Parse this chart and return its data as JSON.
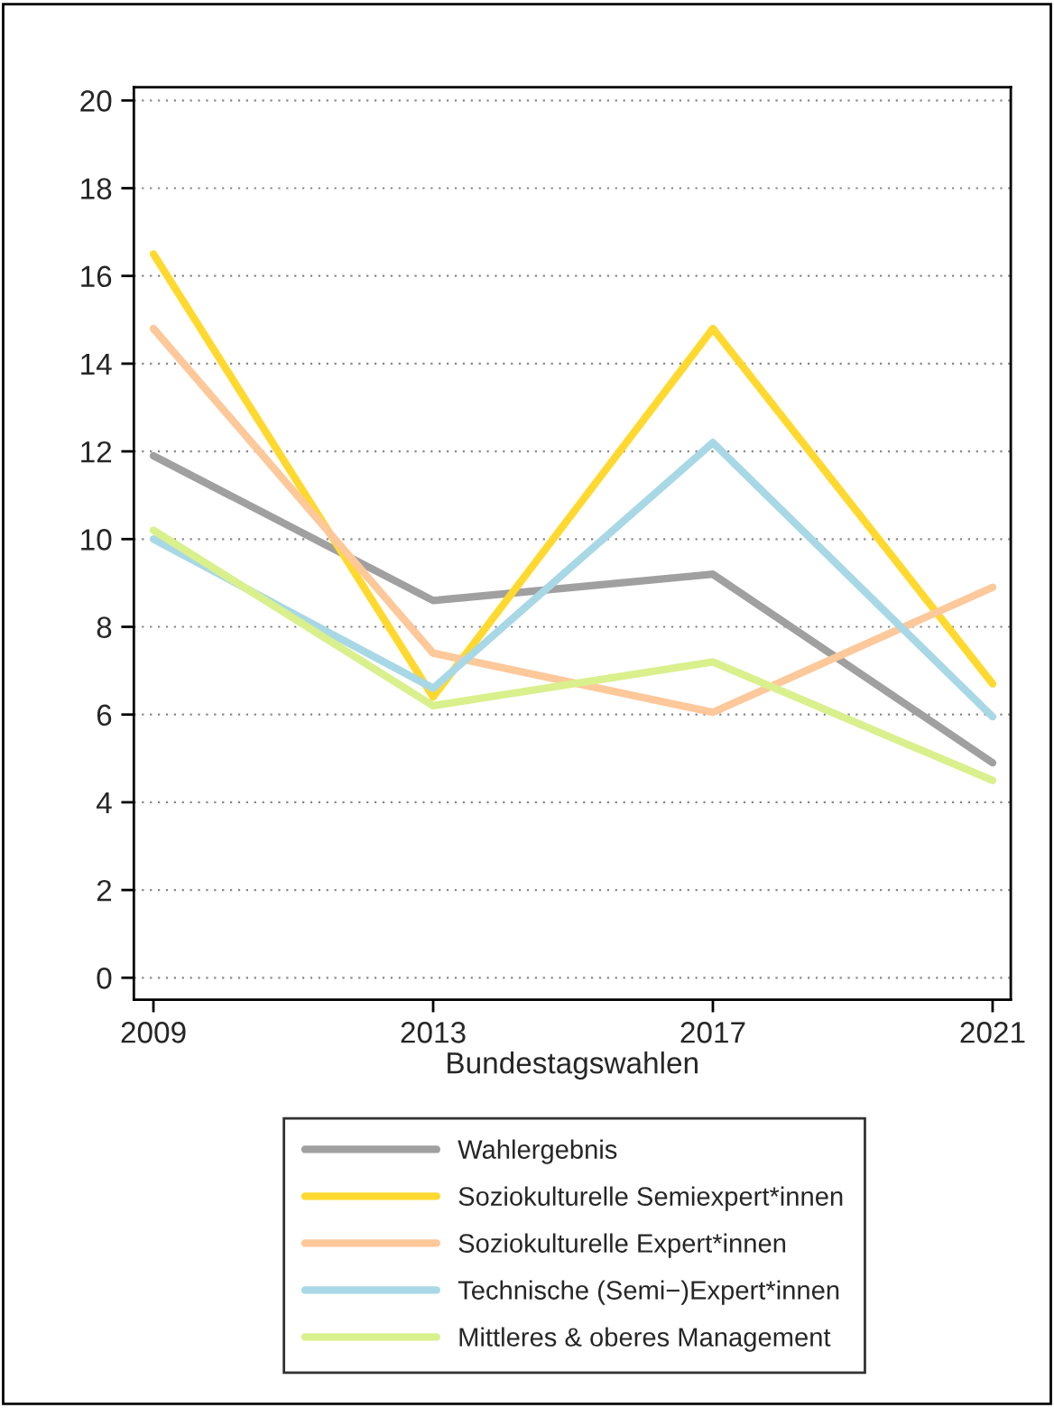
{
  "chart_data": {
    "type": "line",
    "xlabel": "Bundestagswahlen",
    "x": [
      2009,
      2013,
      2017,
      2021
    ],
    "xlim": [
      2008.72,
      2021.26
    ],
    "xticks": [
      2009,
      2013,
      2017,
      2021
    ],
    "ylim": [
      -0.5,
      20.3
    ],
    "yticks": [
      0,
      2,
      4,
      6,
      8,
      10,
      12,
      14,
      16,
      18,
      20
    ],
    "grid": "y",
    "legend": "bottom",
    "marker": "none",
    "line_style": "solid",
    "series": [
      {
        "name": "Wahlergebnis",
        "color": "#a0a0a0",
        "values": [
          11.9,
          8.6,
          9.2,
          4.9
        ]
      },
      {
        "name": "Soziokulturelle Semiexpert*innen",
        "color": "#ffd92f",
        "values": [
          16.5,
          6.4,
          14.8,
          6.7
        ]
      },
      {
        "name": "Soziokulturelle Expert*innen",
        "color": "#fdc89a",
        "values": [
          14.8,
          7.4,
          6.05,
          8.9
        ]
      },
      {
        "name": "Technische (Semi−)Expert*innen",
        "color": "#a8d8e6",
        "values": [
          10.0,
          6.6,
          12.2,
          5.95
        ]
      },
      {
        "name": "Mittleres & oberes Management",
        "color": "#d9f08c",
        "values": [
          10.2,
          6.2,
          7.2,
          4.5
        ]
      }
    ]
  }
}
